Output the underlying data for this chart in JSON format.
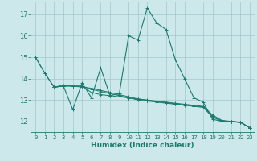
{
  "xlabel": "Humidex (Indice chaleur)",
  "xlim": [
    -0.5,
    23.5
  ],
  "ylim": [
    11.5,
    17.6
  ],
  "yticks": [
    12,
    13,
    14,
    15,
    16,
    17
  ],
  "xticks": [
    0,
    1,
    2,
    3,
    4,
    5,
    6,
    7,
    8,
    9,
    10,
    11,
    12,
    13,
    14,
    15,
    16,
    17,
    18,
    19,
    20,
    21,
    22,
    23
  ],
  "bg_color": "#cde8ea",
  "grid_color": "#a0c8cc",
  "line_color": "#1a7a6e",
  "lines": [
    {
      "x": [
        0,
        1,
        2,
        3,
        4,
        5,
        6,
        7,
        8,
        9,
        10,
        11,
        12,
        13,
        14,
        15,
        16,
        17,
        18,
        19,
        20,
        21,
        22,
        23
      ],
      "y": [
        15.0,
        14.25,
        13.6,
        13.65,
        12.55,
        13.8,
        13.1,
        14.5,
        13.2,
        13.3,
        16.0,
        15.8,
        17.3,
        16.6,
        16.3,
        14.9,
        14.0,
        13.1,
        12.9,
        12.1,
        12.0,
        12.0,
        11.95,
        11.7
      ]
    },
    {
      "x": [
        0,
        1,
        2,
        3,
        4,
        5,
        6,
        7,
        8,
        9,
        10,
        11,
        12,
        13,
        14,
        15,
        16,
        17,
        18,
        19,
        20,
        21,
        22,
        23
      ],
      "y": [
        15.0,
        14.25,
        13.6,
        13.65,
        13.65,
        13.65,
        13.35,
        13.25,
        13.2,
        13.15,
        13.1,
        13.05,
        13.0,
        12.95,
        12.9,
        12.85,
        12.8,
        12.75,
        12.7,
        12.3,
        12.05,
        12.0,
        11.95,
        11.7
      ]
    },
    {
      "x": [
        2,
        3,
        4,
        5,
        6,
        7,
        8,
        9,
        10,
        11,
        12,
        13,
        14,
        15,
        16,
        17,
        18,
        19,
        20,
        21,
        22,
        23
      ],
      "y": [
        13.6,
        13.65,
        13.65,
        13.65,
        13.5,
        13.4,
        13.3,
        13.2,
        13.1,
        13.0,
        12.95,
        12.9,
        12.85,
        12.8,
        12.75,
        12.7,
        12.65,
        12.2,
        12.0,
        11.98,
        11.95,
        11.7
      ]
    },
    {
      "x": [
        2,
        3,
        4,
        5,
        6,
        7,
        8,
        9,
        10,
        11,
        12,
        13,
        14,
        15,
        16,
        17,
        18,
        19,
        20,
        21,
        22,
        23
      ],
      "y": [
        13.6,
        13.7,
        13.65,
        13.6,
        13.55,
        13.45,
        13.35,
        13.25,
        13.15,
        13.05,
        12.98,
        12.92,
        12.87,
        12.82,
        12.77,
        12.72,
        12.67,
        12.25,
        12.02,
        12.0,
        11.97,
        11.7
      ]
    }
  ]
}
